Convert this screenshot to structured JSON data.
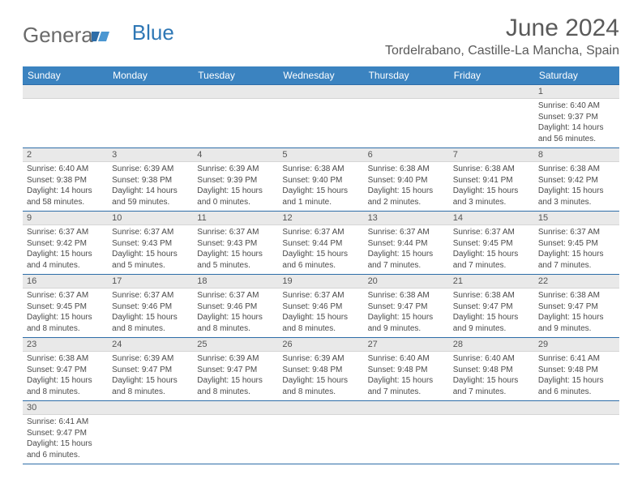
{
  "logo": {
    "text1": "Genera",
    "text2": "Blue"
  },
  "title": "June 2024",
  "location": "Tordelrabano, Castille-La Mancha, Spain",
  "colors": {
    "header_bg": "#3b83c0",
    "header_text": "#ffffff",
    "border": "#2e6da8",
    "daynum_bg": "#e9e9e9",
    "text": "#4a4a4a",
    "title": "#5a5a5a"
  },
  "days_of_week": [
    "Sunday",
    "Monday",
    "Tuesday",
    "Wednesday",
    "Thursday",
    "Friday",
    "Saturday"
  ],
  "weeks": [
    [
      null,
      null,
      null,
      null,
      null,
      null,
      {
        "n": "1",
        "sr": "6:40 AM",
        "ss": "9:37 PM",
        "dl": "14 hours and 56 minutes."
      }
    ],
    [
      {
        "n": "2",
        "sr": "6:40 AM",
        "ss": "9:38 PM",
        "dl": "14 hours and 58 minutes."
      },
      {
        "n": "3",
        "sr": "6:39 AM",
        "ss": "9:38 PM",
        "dl": "14 hours and 59 minutes."
      },
      {
        "n": "4",
        "sr": "6:39 AM",
        "ss": "9:39 PM",
        "dl": "15 hours and 0 minutes."
      },
      {
        "n": "5",
        "sr": "6:38 AM",
        "ss": "9:40 PM",
        "dl": "15 hours and 1 minute."
      },
      {
        "n": "6",
        "sr": "6:38 AM",
        "ss": "9:40 PM",
        "dl": "15 hours and 2 minutes."
      },
      {
        "n": "7",
        "sr": "6:38 AM",
        "ss": "9:41 PM",
        "dl": "15 hours and 3 minutes."
      },
      {
        "n": "8",
        "sr": "6:38 AM",
        "ss": "9:42 PM",
        "dl": "15 hours and 3 minutes."
      }
    ],
    [
      {
        "n": "9",
        "sr": "6:37 AM",
        "ss": "9:42 PM",
        "dl": "15 hours and 4 minutes."
      },
      {
        "n": "10",
        "sr": "6:37 AM",
        "ss": "9:43 PM",
        "dl": "15 hours and 5 minutes."
      },
      {
        "n": "11",
        "sr": "6:37 AM",
        "ss": "9:43 PM",
        "dl": "15 hours and 5 minutes."
      },
      {
        "n": "12",
        "sr": "6:37 AM",
        "ss": "9:44 PM",
        "dl": "15 hours and 6 minutes."
      },
      {
        "n": "13",
        "sr": "6:37 AM",
        "ss": "9:44 PM",
        "dl": "15 hours and 7 minutes."
      },
      {
        "n": "14",
        "sr": "6:37 AM",
        "ss": "9:45 PM",
        "dl": "15 hours and 7 minutes."
      },
      {
        "n": "15",
        "sr": "6:37 AM",
        "ss": "9:45 PM",
        "dl": "15 hours and 7 minutes."
      }
    ],
    [
      {
        "n": "16",
        "sr": "6:37 AM",
        "ss": "9:45 PM",
        "dl": "15 hours and 8 minutes."
      },
      {
        "n": "17",
        "sr": "6:37 AM",
        "ss": "9:46 PM",
        "dl": "15 hours and 8 minutes."
      },
      {
        "n": "18",
        "sr": "6:37 AM",
        "ss": "9:46 PM",
        "dl": "15 hours and 8 minutes."
      },
      {
        "n": "19",
        "sr": "6:37 AM",
        "ss": "9:46 PM",
        "dl": "15 hours and 8 minutes."
      },
      {
        "n": "20",
        "sr": "6:38 AM",
        "ss": "9:47 PM",
        "dl": "15 hours and 9 minutes."
      },
      {
        "n": "21",
        "sr": "6:38 AM",
        "ss": "9:47 PM",
        "dl": "15 hours and 9 minutes."
      },
      {
        "n": "22",
        "sr": "6:38 AM",
        "ss": "9:47 PM",
        "dl": "15 hours and 9 minutes."
      }
    ],
    [
      {
        "n": "23",
        "sr": "6:38 AM",
        "ss": "9:47 PM",
        "dl": "15 hours and 8 minutes."
      },
      {
        "n": "24",
        "sr": "6:39 AM",
        "ss": "9:47 PM",
        "dl": "15 hours and 8 minutes."
      },
      {
        "n": "25",
        "sr": "6:39 AM",
        "ss": "9:47 PM",
        "dl": "15 hours and 8 minutes."
      },
      {
        "n": "26",
        "sr": "6:39 AM",
        "ss": "9:48 PM",
        "dl": "15 hours and 8 minutes."
      },
      {
        "n": "27",
        "sr": "6:40 AM",
        "ss": "9:48 PM",
        "dl": "15 hours and 7 minutes."
      },
      {
        "n": "28",
        "sr": "6:40 AM",
        "ss": "9:48 PM",
        "dl": "15 hours and 7 minutes."
      },
      {
        "n": "29",
        "sr": "6:41 AM",
        "ss": "9:48 PM",
        "dl": "15 hours and 6 minutes."
      }
    ],
    [
      {
        "n": "30",
        "sr": "6:41 AM",
        "ss": "9:47 PM",
        "dl": "15 hours and 6 minutes."
      },
      null,
      null,
      null,
      null,
      null,
      null
    ]
  ],
  "labels": {
    "sunrise": "Sunrise:",
    "sunset": "Sunset:",
    "daylight": "Daylight:"
  }
}
